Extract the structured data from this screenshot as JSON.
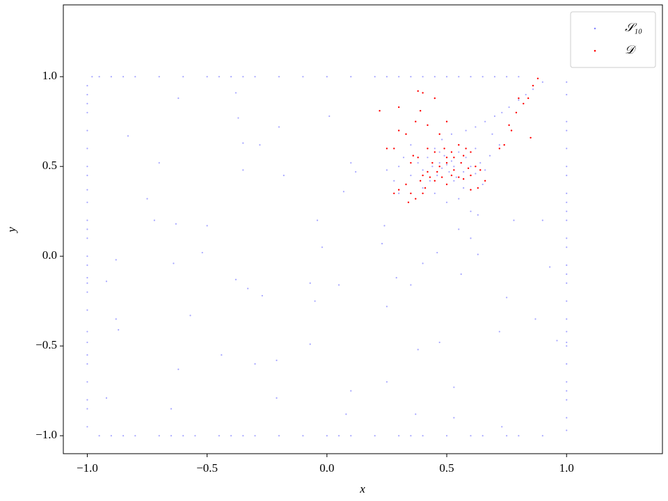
{
  "chart_data": {
    "type": "scatter",
    "xlabel": "x",
    "ylabel": "y",
    "xlim": [
      -1.1,
      1.4
    ],
    "ylim": [
      -1.1,
      1.4
    ],
    "xticks": [
      {
        "value": -1,
        "label": "−1.0"
      },
      {
        "value": -0.5,
        "label": "−0.5"
      },
      {
        "value": 0,
        "label": "0.0"
      },
      0.5,
      {
        "value": 1,
        "label": "1.0"
      }
    ],
    "yticks": [
      {
        "value": -1,
        "label": "−1.0"
      },
      {
        "value": -0.5,
        "label": "−0.5"
      },
      {
        "value": 0,
        "label": "0.0"
      },
      0.5,
      {
        "value": 1,
        "label": "1.0"
      }
    ],
    "legend": "upper right",
    "series": [
      {
        "name": "𝒮₁₀",
        "color": "#0000ff",
        "x": [
          -1,
          -1,
          -1,
          -1,
          -1,
          -1,
          -1,
          -1,
          -1,
          -1,
          -1,
          -1,
          -1,
          -1,
          -1,
          -1,
          -1,
          -1,
          -1,
          -1,
          -1,
          -1,
          -1,
          -1,
          -1,
          -1,
          -1,
          1,
          1,
          1,
          1,
          1,
          1,
          1,
          1,
          1,
          1,
          1,
          1,
          1,
          1,
          1,
          1,
          1,
          1,
          1,
          1,
          1,
          1,
          1,
          1,
          1,
          1,
          1,
          -0.98,
          -0.95,
          -0.9,
          -0.85,
          -0.8,
          -0.7,
          -0.6,
          -0.5,
          -0.45,
          -0.4,
          -0.35,
          -0.3,
          -0.2,
          -0.1,
          0.0,
          0.1,
          0.2,
          0.25,
          0.3,
          0.35,
          0.4,
          0.45,
          0.5,
          0.55,
          0.6,
          0.65,
          0.7,
          0.75,
          0.8,
          -0.95,
          -0.9,
          -0.85,
          -0.8,
          -0.7,
          -0.65,
          -0.6,
          -0.55,
          -0.45,
          -0.4,
          -0.35,
          -0.3,
          -0.2,
          -0.1,
          0.0,
          0.05,
          0.1,
          0.2,
          0.3,
          0.35,
          0.4,
          0.5,
          0.6,
          0.65,
          0.75,
          0.8,
          0.9,
          -0.83,
          -0.7,
          -0.62,
          -0.38,
          -0.37,
          -0.35,
          -0.28,
          -0.2,
          -0.18,
          -0.35,
          -0.75,
          -0.72,
          -0.63,
          -0.5,
          -0.64,
          -0.52,
          -0.88,
          -0.92,
          -0.38,
          -0.33,
          -0.27,
          -0.07,
          -0.05,
          -0.57,
          -0.88,
          -0.87,
          -0.44,
          -0.3,
          -0.21,
          -0.62,
          -0.92,
          -0.65,
          -0.21,
          -0.07,
          -0.02,
          -0.04,
          0.01,
          0.1,
          0.12,
          0.07,
          0.05,
          0.1,
          0.08,
          0.25,
          0.29,
          0.38,
          0.37,
          0.47,
          0.53,
          0.53,
          0.25,
          0.72,
          0.73,
          0.75,
          0.87,
          0.93,
          0.96,
          0.9,
          0.78,
          0.63,
          0.4,
          0.35,
          0.46,
          0.56,
          0.23,
          0.24,
          0.3,
          0.32,
          0.35,
          0.38,
          0.4,
          0.42,
          0.44,
          0.45,
          0.46,
          0.47,
          0.48,
          0.49,
          0.5,
          0.51,
          0.52,
          0.53,
          0.54,
          0.55,
          0.56,
          0.57,
          0.58,
          0.6,
          0.62,
          0.64,
          0.66,
          0.68,
          0.35,
          0.4,
          0.45,
          0.5,
          0.55,
          0.6,
          0.63,
          0.55,
          0.6,
          0.48,
          0.52,
          0.58,
          0.62,
          0.66,
          0.7,
          0.73,
          0.76,
          0.8,
          0.83,
          0.86,
          0.9,
          0.69,
          0.72,
          0.3,
          0.28,
          0.25,
          0.62,
          0.65,
          0.43,
          0.47,
          0.53,
          0.57
        ],
        "values": [
          0.95,
          0.9,
          0.85,
          0.8,
          0.7,
          0.6,
          0.5,
          0.45,
          0.37,
          0.3,
          0.2,
          0.15,
          0.1,
          0.0,
          -0.05,
          -0.12,
          -0.15,
          -0.2,
          -0.3,
          -0.42,
          -0.48,
          -0.55,
          -0.6,
          -0.7,
          -0.8,
          -0.85,
          -0.95,
          0.97,
          0.9,
          0.75,
          0.7,
          0.6,
          0.5,
          0.45,
          0.35,
          0.3,
          0.25,
          0.2,
          0.1,
          0.05,
          -0.05,
          -0.1,
          -0.15,
          -0.25,
          -0.35,
          -0.42,
          -0.48,
          -0.5,
          -0.6,
          -0.7,
          -0.75,
          -0.8,
          -0.9,
          -0.97,
          1,
          1,
          1,
          1,
          1,
          1,
          1,
          1,
          1,
          1,
          1,
          1,
          1,
          1,
          1,
          1,
          1,
          1,
          1,
          1,
          1,
          1,
          1,
          1,
          1,
          1,
          1,
          1,
          1,
          -1,
          -1,
          -1,
          -1,
          -1,
          -1,
          -1,
          -1,
          -1,
          -1,
          -1,
          -1,
          -1,
          -1,
          -1,
          -1,
          -1,
          -1,
          -1,
          -1,
          -1,
          -1,
          -1,
          -1,
          -1,
          -1,
          -1,
          0.67,
          0.52,
          0.88,
          0.91,
          0.77,
          0.63,
          0.62,
          0.72,
          0.45,
          0.48,
          0.32,
          0.2,
          0.18,
          0.17,
          -0.04,
          0.02,
          -0.02,
          -0.14,
          -0.13,
          -0.18,
          -0.22,
          -0.15,
          -0.25,
          -0.33,
          -0.35,
          -0.41,
          -0.55,
          -0.6,
          -0.58,
          -0.63,
          -0.79,
          -0.85,
          -0.79,
          -0.49,
          0.05,
          0.2,
          0.78,
          0.52,
          0.47,
          0.36,
          -0.16,
          -0.75,
          -0.88,
          -0.28,
          -0.12,
          -0.52,
          -0.88,
          -0.48,
          -0.73,
          -0.9,
          -0.7,
          -0.42,
          -0.95,
          -0.23,
          -0.35,
          -0.06,
          -0.47,
          0.2,
          0.2,
          0.01,
          -0.04,
          -0.16,
          0.02,
          -0.1,
          0.07,
          0.17,
          0.5,
          0.55,
          0.45,
          0.52,
          0.48,
          0.55,
          0.5,
          0.6,
          0.45,
          0.52,
          0.49,
          0.56,
          0.51,
          0.47,
          0.53,
          0.5,
          0.44,
          0.58,
          0.52,
          0.47,
          0.55,
          0.5,
          0.46,
          0.52,
          0.48,
          0.56,
          0.62,
          0.38,
          0.35,
          0.3,
          0.32,
          0.25,
          0.23,
          0.15,
          0.1,
          0.65,
          0.68,
          0.7,
          0.72,
          0.75,
          0.78,
          0.8,
          0.83,
          0.87,
          0.9,
          0.93,
          0.97,
          0.68,
          0.62,
          0.35,
          0.42,
          0.48,
          0.6,
          0.4,
          0.42,
          0.58,
          0.42,
          0.38
        ]
      },
      {
        "name": "𝒟",
        "color": "#ff0000",
        "x": [
          0.22,
          0.3,
          0.38,
          0.4,
          0.39,
          0.45,
          0.3,
          0.28,
          0.25,
          0.33,
          0.37,
          0.42,
          0.5,
          0.47,
          0.55,
          0.58,
          0.6,
          0.57,
          0.53,
          0.5,
          0.47,
          0.44,
          0.42,
          0.4,
          0.38,
          0.36,
          0.35,
          0.33,
          0.35,
          0.37,
          0.34,
          0.39,
          0.41,
          0.43,
          0.45,
          0.48,
          0.5,
          0.52,
          0.55,
          0.57,
          0.6,
          0.62,
          0.64,
          0.66,
          0.63,
          0.6,
          0.45,
          0.49,
          0.52,
          0.56,
          0.59,
          0.3,
          0.28,
          0.72,
          0.74,
          0.77,
          0.76,
          0.79,
          0.82,
          0.84,
          0.86,
          0.88,
          0.85,
          0.8,
          0.42,
          0.4,
          0.5,
          0.53,
          0.46
        ],
        "values": [
          0.81,
          0.83,
          0.92,
          0.91,
          0.81,
          0.88,
          0.7,
          0.6,
          0.6,
          0.68,
          0.75,
          0.73,
          0.75,
          0.68,
          0.62,
          0.6,
          0.58,
          0.56,
          0.55,
          0.52,
          0.5,
          0.52,
          0.47,
          0.45,
          0.55,
          0.56,
          0.52,
          0.4,
          0.35,
          0.32,
          0.3,
          0.42,
          0.38,
          0.44,
          0.42,
          0.44,
          0.4,
          0.45,
          0.44,
          0.43,
          0.45,
          0.5,
          0.48,
          0.42,
          0.38,
          0.37,
          0.58,
          0.6,
          0.58,
          0.52,
          0.49,
          0.37,
          0.35,
          0.6,
          0.62,
          0.7,
          0.73,
          0.8,
          0.85,
          0.88,
          0.95,
          0.99,
          0.66,
          0.88,
          0.6,
          0.35,
          0.55,
          0.48,
          0.47
        ]
      }
    ]
  }
}
